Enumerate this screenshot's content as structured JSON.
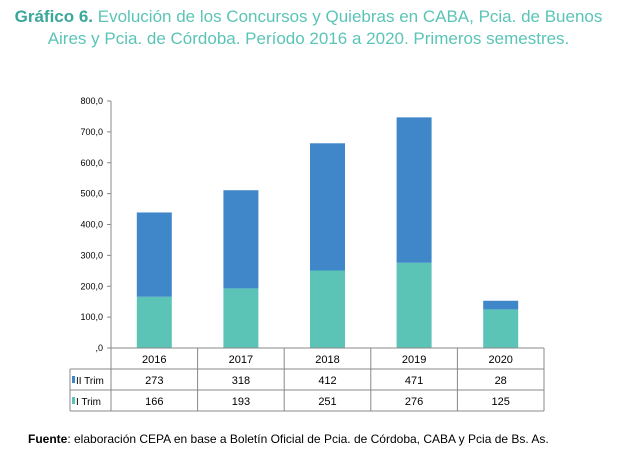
{
  "title": {
    "lead": "Gráfico 6.",
    "text": "Evolución de los Concursos y Quiebras en CABA, Pcia. de Buenos Aires y Pcia. de Córdoba. Período 2016 a 2020. Primeros semestres."
  },
  "source": {
    "label": "Fuente",
    "text": ": elaboración CEPA en base a Boletín Oficial de Pcia. de Córdoba, CABA y Pcia de Bs. As."
  },
  "chart_data": {
    "type": "bar",
    "stacked": true,
    "categories": [
      "2016",
      "2017",
      "2018",
      "2019",
      "2020"
    ],
    "series": [
      {
        "name": "I Trim",
        "values": [
          166,
          193,
          251,
          276,
          125
        ],
        "color": "#5bc4b7"
      },
      {
        "name": "II Trim",
        "values": [
          273,
          318,
          412,
          471,
          28
        ],
        "color": "#3f87c9"
      }
    ],
    "yticks": [
      "800,0",
      "700,0",
      "600,0",
      "500,0",
      "400,0",
      "300,0",
      "200,0",
      "100,0",
      ",0"
    ],
    "ylim": [
      0,
      800
    ],
    "table_rows": [
      "II Trim",
      "I Trim"
    ],
    "grid": false,
    "legend": "data-table"
  }
}
